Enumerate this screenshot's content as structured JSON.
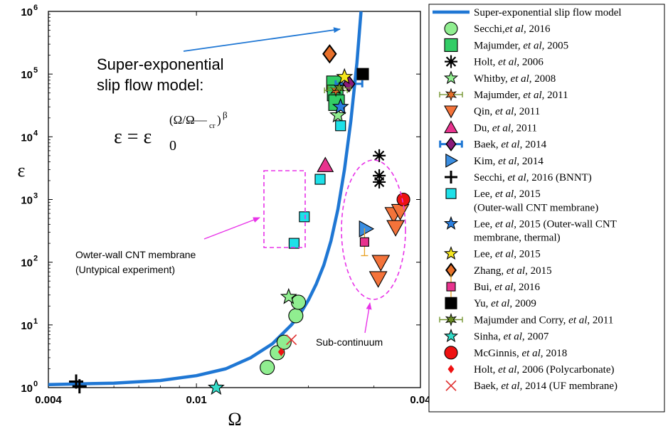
{
  "chart_data": {
    "type": "scatter",
    "x_scale": "log",
    "y_scale": "log",
    "xlim": [
      0.004,
      0.04
    ],
    "ylim": [
      1,
      1000000
    ],
    "xlabel": "Ω",
    "ylabel": "ε",
    "x_ticks": [
      {
        "value": 0.004,
        "label": "0.004"
      },
      {
        "value": 0.01,
        "label": "0.01"
      },
      {
        "value": 0.04,
        "label": "0.04"
      }
    ],
    "y_ticks": [
      {
        "value": 1,
        "label": "10",
        "exp": "0"
      },
      {
        "value": 10,
        "label": "10",
        "exp": "1"
      },
      {
        "value": 100,
        "label": "10",
        "exp": "2"
      },
      {
        "value": 1000,
        "label": "10",
        "exp": "3"
      },
      {
        "value": 10000,
        "label": "10",
        "exp": "4"
      },
      {
        "value": 100000,
        "label": "10",
        "exp": "5"
      },
      {
        "value": 1000000,
        "label": "10",
        "exp": "6"
      }
    ],
    "model": {
      "name": "Super-exponential slip flow model",
      "color": "#1f77d4",
      "points": [
        [
          0.004,
          1.12
        ],
        [
          0.006,
          1.18
        ],
        [
          0.008,
          1.3
        ],
        [
          0.01,
          1.55
        ],
        [
          0.012,
          2.0
        ],
        [
          0.014,
          3.0
        ],
        [
          0.016,
          5.0
        ],
        [
          0.018,
          10
        ],
        [
          0.019,
          15
        ],
        [
          0.02,
          25
        ],
        [
          0.021,
          45
        ],
        [
          0.022,
          90
        ],
        [
          0.023,
          220
        ],
        [
          0.024,
          700
        ],
        [
          0.025,
          3000
        ],
        [
          0.026,
          18000
        ],
        [
          0.027,
          150000
        ],
        [
          0.0277,
          1000000
        ]
      ]
    },
    "series": [
      {
        "name": "Secchi,",
        "name_em": "et al",
        "name_tail": ", 2016",
        "marker": "circle",
        "color": "#90ee90",
        "size": 10,
        "points": [
          [
            0.0155,
            2.1
          ],
          [
            0.0165,
            3.6
          ],
          [
            0.0172,
            5.3
          ],
          [
            0.0185,
            14
          ],
          [
            0.0188,
            23
          ]
        ]
      },
      {
        "name": "Majumder, ",
        "name_em": "et al",
        "name_tail": ", 2005",
        "marker": "square",
        "color": "#32cd66",
        "size": 11,
        "points": [
          [
            0.0235,
            70000
          ],
          [
            0.0236,
            50000
          ],
          [
            0.0238,
            35000
          ]
        ]
      },
      {
        "name": "Holt, ",
        "name_em": "et al",
        "name_tail": ", 2006",
        "marker": "asterisk",
        "color": "#000000",
        "size": 9,
        "points": [
          [
            0.031,
            5000
          ],
          [
            0.031,
            2400
          ],
          [
            0.031,
            1900
          ]
        ]
      },
      {
        "name": "Whitby, ",
        "name_em": "et al",
        "name_tail": ", 2008",
        "marker": "star",
        "color": "#90ee90",
        "size": 11,
        "points": [
          [
            0.0177,
            28
          ],
          [
            0.024,
            22000
          ]
        ]
      },
      {
        "name": "Majumder, ",
        "name_em": "et al",
        "name_tail": ", 2011",
        "marker": "hexagram-err",
        "color": "#e8702a",
        "size": 8,
        "points": [
          [
            0.0237,
            55000
          ]
        ]
      },
      {
        "name": "Qin, ",
        "name_em": "et al",
        "name_tail": ", 2011",
        "marker": "triangle-down",
        "color": "#f4733a",
        "size": 12,
        "points": [
          [
            0.0313,
            100
          ],
          [
            0.0308,
            55
          ],
          [
            0.0339,
            580
          ],
          [
            0.0353,
            650
          ],
          [
            0.0343,
            360
          ]
        ]
      },
      {
        "name": "Du, ",
        "name_em": "et al",
        "name_tail": ", 2011",
        "marker": "triangle-up",
        "color": "#e8338e",
        "size": 11,
        "points": [
          [
            0.0222,
            3500
          ]
        ]
      },
      {
        "name": "Baek, ",
        "name_em": "et al",
        "name_tail": ", 2014",
        "marker": "diamond-err",
        "color": "#8b1a7a",
        "size": 11,
        "points": [
          [
            0.0257,
            70000
          ]
        ]
      },
      {
        "name": "Kim, ",
        "name_em": "et al",
        "name_tail": ", 2014",
        "marker": "triangle-right",
        "color": "#3a8de0",
        "size": 11,
        "points": [
          [
            0.0285,
            340
          ]
        ]
      },
      {
        "name": "Secchi, ",
        "name_em": "et al",
        "name_tail": ", 2016 (BNNT)",
        "marker": "plus",
        "color": "#000000",
        "size": 10,
        "points": [
          [
            0.00475,
            1.25
          ],
          [
            0.00485,
            1.05
          ]
        ]
      },
      {
        "name": "Lee, ",
        "name_em": "et al",
        "name_tail": ", 2015",
        "name_line2": " (Outer-wall CNT membrane)",
        "marker": "square-small",
        "color": "#1ee0e8",
        "size": 7,
        "points": [
          [
            0.0183,
            200
          ],
          [
            0.0195,
            530
          ],
          [
            0.0215,
            2100
          ],
          [
            0.0244,
            15000
          ]
        ]
      },
      {
        "name": "Lee, ",
        "name_em": "et al",
        "name_tail": ", 2015 (Outer-wall CNT",
        "name_line2": " membrane, thermal)",
        "marker": "star-blue",
        "color": "#2a7fe0",
        "size": 11,
        "points": [
          [
            0.0244,
            30000
          ]
        ]
      },
      {
        "name": "Lee, ",
        "name_em": "et al",
        "name_tail": ", 2015",
        "marker": "star",
        "color": "#f5e61e",
        "size": 11,
        "points": [
          [
            0.025,
            90000
          ]
        ]
      },
      {
        "name": "Zhang, ",
        "name_em": "et al",
        "name_tail": ", 2015",
        "marker": "diamond",
        "color": "#e8702a",
        "size": 12,
        "points": [
          [
            0.0228,
            210000
          ]
        ]
      },
      {
        "name": "Bui, ",
        "name_em": "et al",
        "name_tail": ", 2016",
        "marker": "square-err",
        "color": "#e8338e",
        "size": 6,
        "points": [
          [
            0.0283,
            210
          ]
        ]
      },
      {
        "name": "Yu, ",
        "name_em": "et al",
        "name_tail": ", 2009",
        "marker": "square",
        "color": "#000000",
        "size": 8,
        "points": [
          [
            0.028,
            100000
          ]
        ]
      },
      {
        "name": "Majumder and Corry, ",
        "name_em": "et al",
        "name_tail": ", 2011",
        "marker": "hexagram-err",
        "color": "#6b8e23",
        "size": 8,
        "points": [
          [
            0.0242,
            60000
          ]
        ]
      },
      {
        "name": "Sinha, ",
        "name_em": "et al",
        "name_tail": ", 2007",
        "marker": "star",
        "color": "#33dcc8",
        "size": 11,
        "points": [
          [
            0.0113,
            1.0
          ]
        ]
      },
      {
        "name": "McGinnis, ",
        "name_em": "et al",
        "name_tail": ", 2018",
        "marker": "circle",
        "color": "#ee1111",
        "size": 9,
        "points": [
          [
            0.036,
            1000
          ]
        ]
      },
      {
        "name": "Holt, ",
        "name_em": "et al",
        "name_tail": ", 2006 (Polycarbonate)",
        "marker": "diamond-small",
        "color": "#ee1111",
        "size": 6,
        "points": [
          [
            0.0169,
            3.7
          ]
        ]
      },
      {
        "name": "Baek, ",
        "name_em": "et al",
        "name_tail": ", 2014 (UF membrane)",
        "marker": "x",
        "color": "#e03030",
        "size": 7,
        "points": [
          [
            0.018,
            5.8
          ]
        ]
      }
    ],
    "annotations": {
      "model_label_line1": "Super-exponential",
      "model_label_line2": "slip flow model:",
      "formula_lhs": "ε = ε",
      "formula_sub": "0",
      "formula_exp": "(Ω/Ω",
      "formula_exp_sub": "cr",
      "formula_exp_tail": ")",
      "formula_beta": "β",
      "untypical_line1": "Owter-wall CNT membrane",
      "untypical_line2": "(Untypical experiment)",
      "subcontinuum": "Sub-continuum"
    }
  }
}
